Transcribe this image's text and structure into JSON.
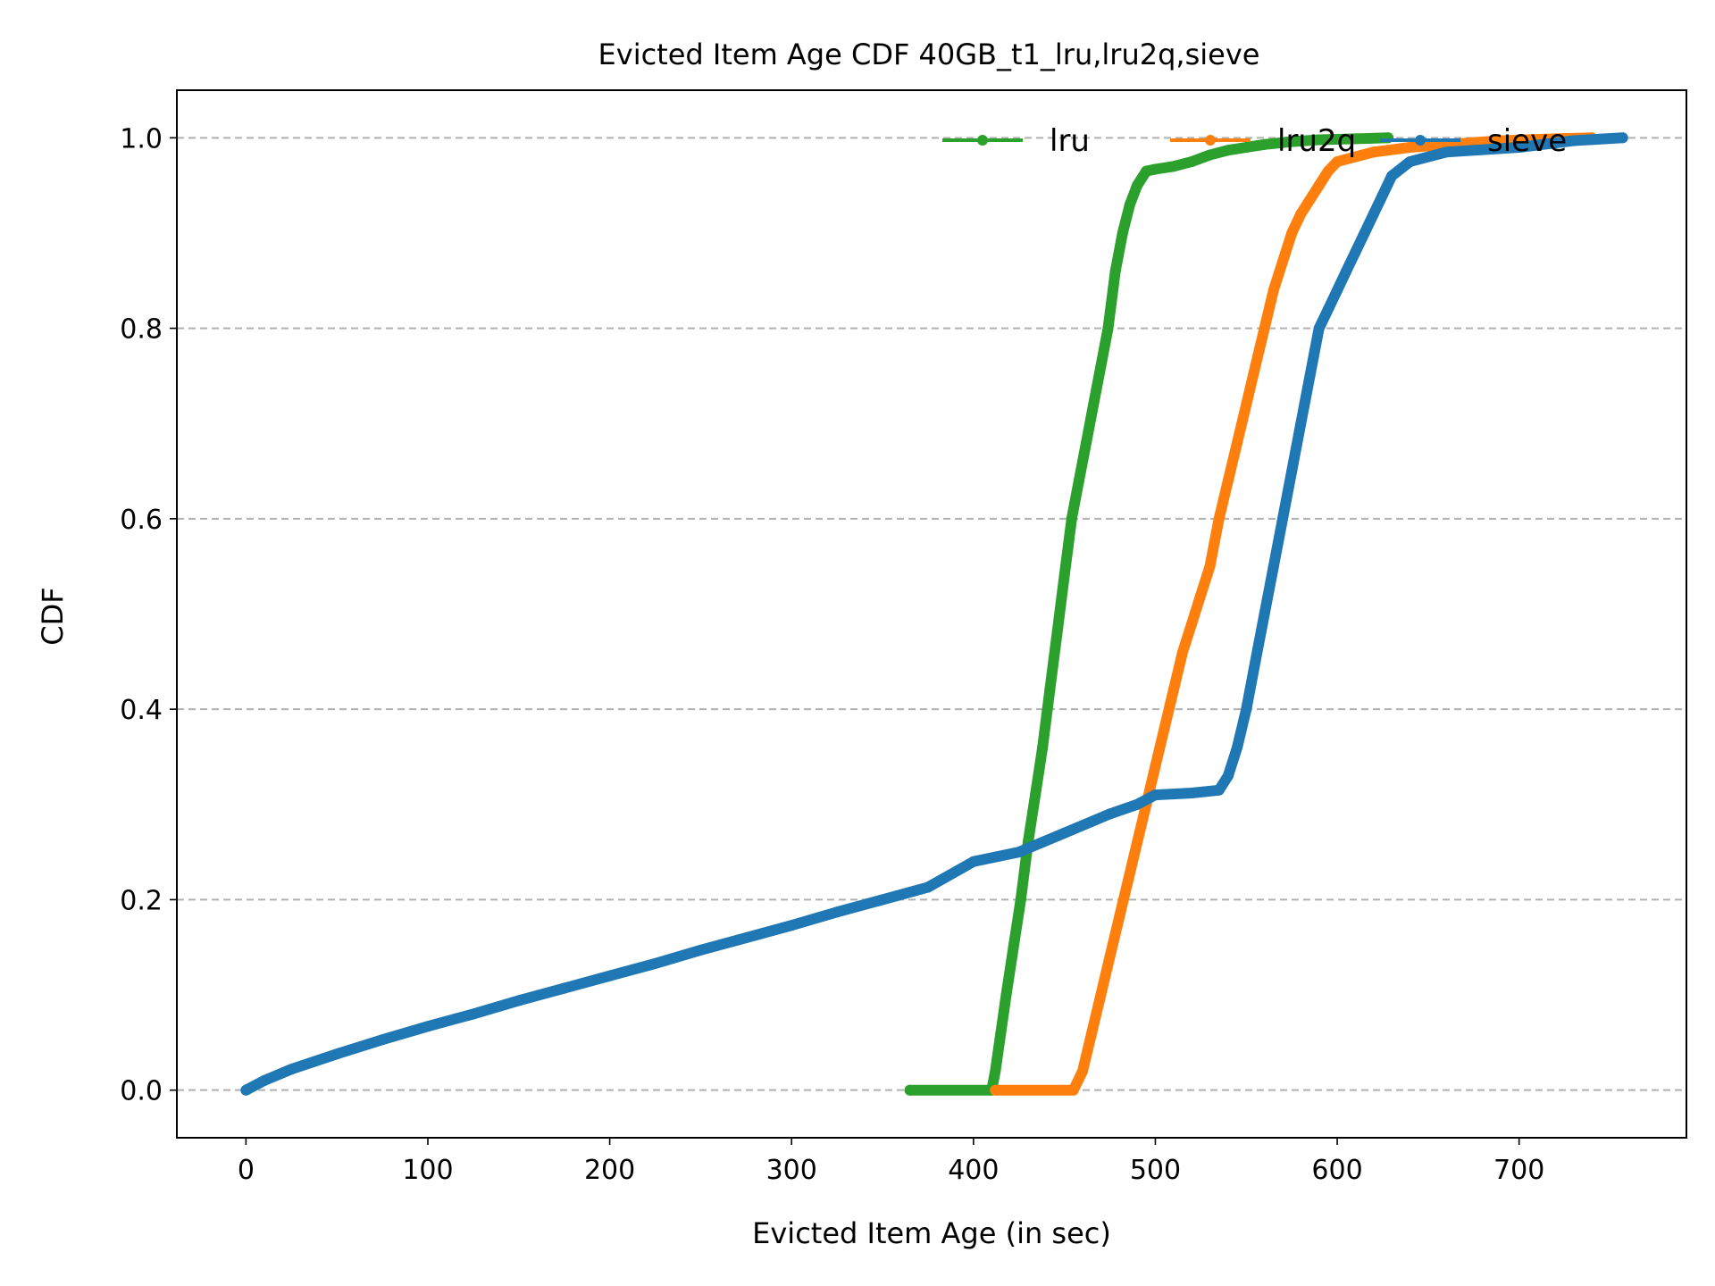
{
  "chart_data": {
    "type": "line",
    "title": "Evicted Item Age CDF 40GB_t1_lru,lru2q,sieve",
    "xlabel": "Evicted Item Age (in sec)",
    "ylabel": "CDF",
    "xlim": [
      -38,
      792
    ],
    "ylim": [
      -0.05,
      1.05
    ],
    "xticks": [
      0,
      100,
      200,
      300,
      400,
      500,
      600,
      700
    ],
    "yticks": [
      0.0,
      0.2,
      0.4,
      0.6,
      0.8,
      1.0
    ],
    "xtick_labels": [
      "0",
      "100",
      "200",
      "300",
      "400",
      "500",
      "600",
      "700"
    ],
    "ytick_labels": [
      "0.0",
      "0.2",
      "0.4",
      "0.6",
      "0.8",
      "1.0"
    ],
    "grid": "horizontal dashed",
    "legend_position": "top-right",
    "series": [
      {
        "name": "lru",
        "color": "#2ca02c",
        "x": [
          365,
          410,
          412,
          415,
          418,
          422,
          426,
          430,
          434,
          438,
          442,
          446,
          450,
          454,
          458,
          462,
          466,
          470,
          474,
          478,
          482,
          486,
          490,
          495,
          500,
          510,
          520,
          530,
          540,
          550,
          560,
          575,
          590,
          610,
          628
        ],
        "y": [
          0.0,
          0.0,
          0.02,
          0.06,
          0.1,
          0.15,
          0.2,
          0.26,
          0.31,
          0.36,
          0.42,
          0.48,
          0.54,
          0.6,
          0.64,
          0.68,
          0.72,
          0.76,
          0.8,
          0.86,
          0.9,
          0.93,
          0.95,
          0.965,
          0.967,
          0.97,
          0.975,
          0.982,
          0.987,
          0.99,
          0.993,
          0.996,
          0.998,
          0.999,
          1.0
        ]
      },
      {
        "name": "lru2q",
        "color": "#ff7f0e",
        "x": [
          412,
          455,
          460,
          465,
          470,
          475,
          480,
          485,
          490,
          495,
          500,
          505,
          510,
          515,
          520,
          525,
          530,
          535,
          540,
          545,
          550,
          555,
          560,
          565,
          570,
          575,
          580,
          585,
          590,
          595,
          600,
          610,
          620,
          640,
          660,
          690,
          720,
          740
        ],
        "y": [
          0.0,
          0.0,
          0.02,
          0.06,
          0.1,
          0.14,
          0.18,
          0.22,
          0.26,
          0.3,
          0.34,
          0.38,
          0.42,
          0.46,
          0.49,
          0.52,
          0.55,
          0.6,
          0.64,
          0.68,
          0.72,
          0.76,
          0.8,
          0.84,
          0.87,
          0.9,
          0.92,
          0.935,
          0.95,
          0.965,
          0.975,
          0.98,
          0.985,
          0.99,
          0.993,
          0.997,
          0.999,
          1.0
        ]
      },
      {
        "name": "sieve",
        "color": "#1f77b4",
        "x": [
          0,
          10,
          25,
          50,
          75,
          100,
          125,
          150,
          175,
          200,
          225,
          250,
          275,
          300,
          325,
          350,
          375,
          400,
          425,
          450,
          475,
          490,
          500,
          520,
          535,
          540,
          545,
          550,
          555,
          560,
          565,
          570,
          575,
          580,
          585,
          590,
          595,
          600,
          605,
          610,
          615,
          620,
          625,
          630,
          640,
          660,
          700,
          730,
          757
        ],
        "y": [
          0.0,
          0.01,
          0.022,
          0.038,
          0.053,
          0.067,
          0.08,
          0.094,
          0.107,
          0.12,
          0.133,
          0.147,
          0.16,
          0.173,
          0.187,
          0.2,
          0.213,
          0.24,
          0.25,
          0.27,
          0.29,
          0.3,
          0.31,
          0.312,
          0.315,
          0.33,
          0.36,
          0.4,
          0.45,
          0.5,
          0.55,
          0.6,
          0.65,
          0.7,
          0.75,
          0.8,
          0.82,
          0.84,
          0.86,
          0.88,
          0.9,
          0.92,
          0.94,
          0.96,
          0.975,
          0.985,
          0.99,
          0.997,
          1.0
        ]
      }
    ]
  }
}
